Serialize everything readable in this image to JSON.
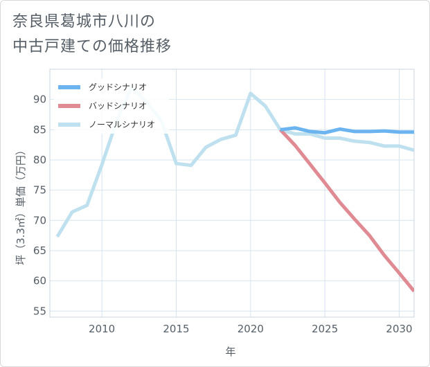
{
  "page": {
    "title_line1": "奈良県葛城市八川の",
    "title_line2": "中古戸建ての価格推移"
  },
  "chart_data": {
    "type": "line",
    "title": "奈良県葛城市八川の中古戸建ての価格推移",
    "xlabel": "年",
    "ylabel": "坪（3.3㎡）単価（万円）",
    "xlim": [
      2006.5,
      2031
    ],
    "ylim": [
      54,
      95
    ],
    "x_ticks": [
      2010,
      2015,
      2020,
      2025,
      2030
    ],
    "y_ticks": [
      55,
      60,
      65,
      70,
      75,
      80,
      85,
      90
    ],
    "legend_position": "top-left",
    "series": [
      {
        "name": "グッドシナリオ",
        "color": "#6cb4f0",
        "x": [
          2022,
          2023,
          2024,
          2025,
          2026,
          2027,
          2028,
          2029,
          2030,
          2031
        ],
        "values": [
          85.0,
          85.3,
          84.7,
          84.5,
          85.1,
          84.7,
          84.7,
          84.8,
          84.6,
          84.6
        ]
      },
      {
        "name": "バッドシナリオ",
        "color": "#e08b93",
        "x": [
          2022,
          2023,
          2024,
          2025,
          2026,
          2027,
          2028,
          2029,
          2030,
          2031
        ],
        "values": [
          85.0,
          82.4,
          79.3,
          76.2,
          73.0,
          70.2,
          67.5,
          64.2,
          61.3,
          58.3
        ]
      },
      {
        "name": "ノーマルシナリオ",
        "color": "#bfe0ef",
        "x": [
          2007,
          2008,
          2009,
          2010,
          2011,
          2012,
          2013,
          2014,
          2015,
          2016,
          2017,
          2018,
          2019,
          2020,
          2021,
          2022,
          2023,
          2024,
          2025,
          2026,
          2027,
          2028,
          2029,
          2030,
          2031
        ],
        "values": [
          67.3,
          71.4,
          72.5,
          79.2,
          86.5,
          92.0,
          89.6,
          86.5,
          79.4,
          79.1,
          82.1,
          83.4,
          84.1,
          91.0,
          88.9,
          85.0,
          84.3,
          84.3,
          83.6,
          83.6,
          83.1,
          82.9,
          82.3,
          82.3,
          81.6
        ]
      }
    ]
  }
}
